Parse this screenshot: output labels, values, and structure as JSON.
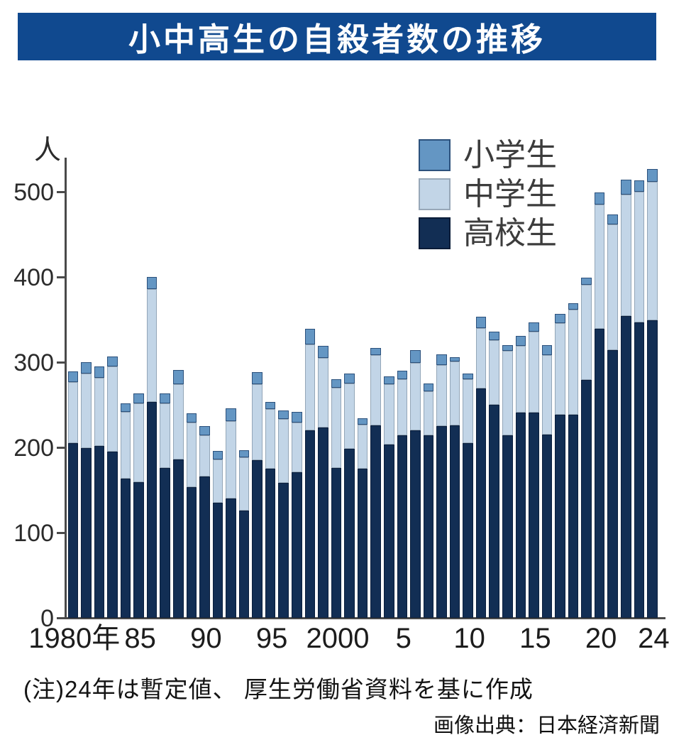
{
  "title": "小中高生の自殺者数の推移",
  "y_axis": {
    "unit": "人",
    "ticks": [
      0,
      100,
      200,
      300,
      400,
      500
    ],
    "max": 500
  },
  "x_axis": {
    "tick_labels": [
      {
        "index": 0,
        "label": "1980年"
      },
      {
        "index": 5,
        "label": "85"
      },
      {
        "index": 10,
        "label": "90"
      },
      {
        "index": 15,
        "label": "95"
      },
      {
        "index": 20,
        "label": "2000"
      },
      {
        "index": 25,
        "label": "5"
      },
      {
        "index": 30,
        "label": "10"
      },
      {
        "index": 35,
        "label": "15"
      },
      {
        "index": 40,
        "label": "20"
      },
      {
        "index": 44,
        "label": "24"
      }
    ]
  },
  "legend": [
    {
      "label": "小学生",
      "color": "#6496c3",
      "border": "#2c517c"
    },
    {
      "label": "中学生",
      "color": "#c2d5e7",
      "border": "#98a8b8"
    },
    {
      "label": "高校生",
      "color": "#122e54",
      "border": "#0a1c38"
    }
  ],
  "note": "(注)24年は暫定値、 厚生労働省資料を基に作成",
  "source": "画像出典：日本経済新聞",
  "colors": {
    "banner_bg": "#10498f",
    "banner_text": "#ffffff",
    "axis": "#4a4a4a"
  },
  "chart_data": {
    "type": "bar",
    "stacked": true,
    "title": "小中高生の自殺者数の推移",
    "ylabel": "人",
    "ylim": [
      0,
      540
    ],
    "grid": false,
    "legend_position": "top-right",
    "x": [
      1980,
      1981,
      1982,
      1983,
      1984,
      1985,
      1986,
      1987,
      1988,
      1989,
      1990,
      1991,
      1992,
      1993,
      1994,
      1995,
      1996,
      1997,
      1998,
      1999,
      2000,
      2001,
      2002,
      2003,
      2004,
      2005,
      2006,
      2007,
      2008,
      2009,
      2010,
      2011,
      2012,
      2013,
      2014,
      2015,
      2016,
      2017,
      2018,
      2019,
      2020,
      2021,
      2022,
      2023,
      2024
    ],
    "series": [
      {
        "name": "高校生",
        "color": "#122e54",
        "border": "#0a1e3c",
        "values": [
          205,
          199,
          202,
          195,
          163,
          159,
          253,
          176,
          186,
          153,
          166,
          135,
          140,
          126,
          185,
          175,
          158,
          171,
          220,
          223,
          176,
          198,
          175,
          226,
          203,
          214,
          220,
          214,
          225,
          226,
          205,
          269,
          250,
          214,
          241,
          241,
          215,
          238,
          238,
          279,
          339,
          314,
          354,
          347,
          349
        ]
      },
      {
        "name": "中学生",
        "color": "#c2d5e7",
        "border": "#93a6b8",
        "values": [
          72,
          88,
          80,
          100,
          79,
          93,
          133,
          76,
          88,
          76,
          48,
          51,
          91,
          62,
          89,
          70,
          75,
          58,
          101,
          82,
          94,
          77,
          52,
          82,
          71,
          66,
          79,
          52,
          72,
          75,
          75,
          71,
          76,
          99,
          78,
          95,
          93,
          108,
          124,
          112,
          146,
          148,
          143,
          153,
          163
        ]
      },
      {
        "name": "小学生",
        "color": "#6496c3",
        "border": "#2c517c",
        "values": [
          12,
          13,
          13,
          12,
          10,
          11,
          14,
          11,
          17,
          11,
          11,
          10,
          15,
          9,
          14,
          8,
          10,
          13,
          18,
          14,
          10,
          12,
          7,
          9,
          9,
          10,
          15,
          9,
          12,
          5,
          7,
          13,
          10,
          7,
          12,
          11,
          12,
          11,
          7,
          8,
          14,
          11,
          17,
          13,
          15
        ]
      }
    ]
  }
}
